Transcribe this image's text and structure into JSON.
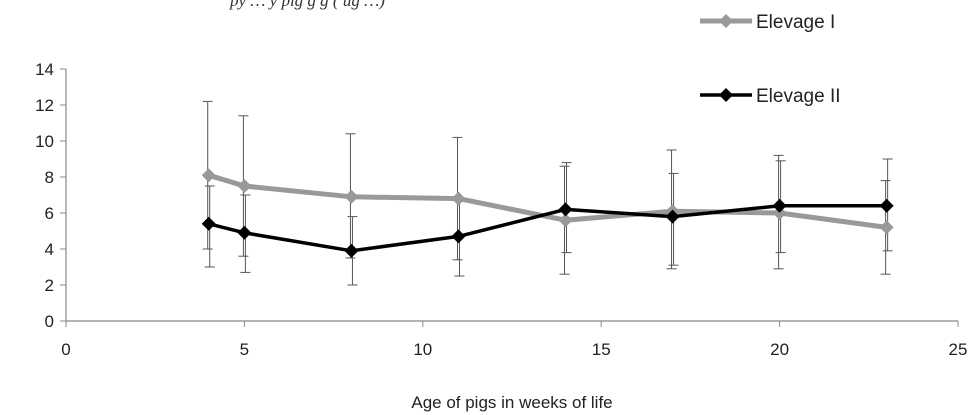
{
  "top_caption": "py … y pig g g ( ug …)",
  "chart_data": {
    "type": "line",
    "title": "",
    "xlabel": "Age of pigs in weeks of life",
    "ylabel": "",
    "xlim": [
      0,
      25
    ],
    "ylim": [
      0,
      14
    ],
    "x_ticks": [
      0,
      5,
      10,
      15,
      20,
      25
    ],
    "y_ticks": [
      0,
      2,
      4,
      6,
      8,
      10,
      12,
      14
    ],
    "grid": false,
    "legend_position": "top-right",
    "series": [
      {
        "name": "Elevage I",
        "color": "#999999",
        "marker": "diamond",
        "points": [
          {
            "x": 4,
            "y": 8.1,
            "err_low": 4.0,
            "err_high": 12.2
          },
          {
            "x": 5,
            "y": 7.5,
            "err_low": 3.6,
            "err_high": 11.4
          },
          {
            "x": 8,
            "y": 6.9,
            "err_low": 3.5,
            "err_high": 10.4
          },
          {
            "x": 11,
            "y": 6.8,
            "err_low": 3.4,
            "err_high": 10.2
          },
          {
            "x": 14,
            "y": 5.6,
            "err_low": 2.6,
            "err_high": 8.6
          },
          {
            "x": 17,
            "y": 6.1,
            "err_low": 2.9,
            "err_high": 9.5
          },
          {
            "x": 20,
            "y": 6.0,
            "err_low": 2.9,
            "err_high": 9.2
          },
          {
            "x": 23,
            "y": 5.2,
            "err_low": 2.6,
            "err_high": 7.8
          }
        ]
      },
      {
        "name": "Elevage II",
        "color": "#000000",
        "marker": "diamond",
        "points": [
          {
            "x": 4,
            "y": 5.4,
            "err_low": 3.0,
            "err_high": 7.5
          },
          {
            "x": 5,
            "y": 4.9,
            "err_low": 2.7,
            "err_high": 7.0
          },
          {
            "x": 8,
            "y": 3.9,
            "err_low": 2.0,
            "err_high": 5.8
          },
          {
            "x": 11,
            "y": 4.7,
            "err_low": 2.5,
            "err_high": 6.8
          },
          {
            "x": 14,
            "y": 6.2,
            "err_low": 3.8,
            "err_high": 8.8
          },
          {
            "x": 17,
            "y": 5.8,
            "err_low": 3.1,
            "err_high": 8.2
          },
          {
            "x": 20,
            "y": 6.4,
            "err_low": 3.8,
            "err_high": 8.9
          },
          {
            "x": 23,
            "y": 6.4,
            "err_low": 3.9,
            "err_high": 9.0
          }
        ]
      }
    ]
  }
}
